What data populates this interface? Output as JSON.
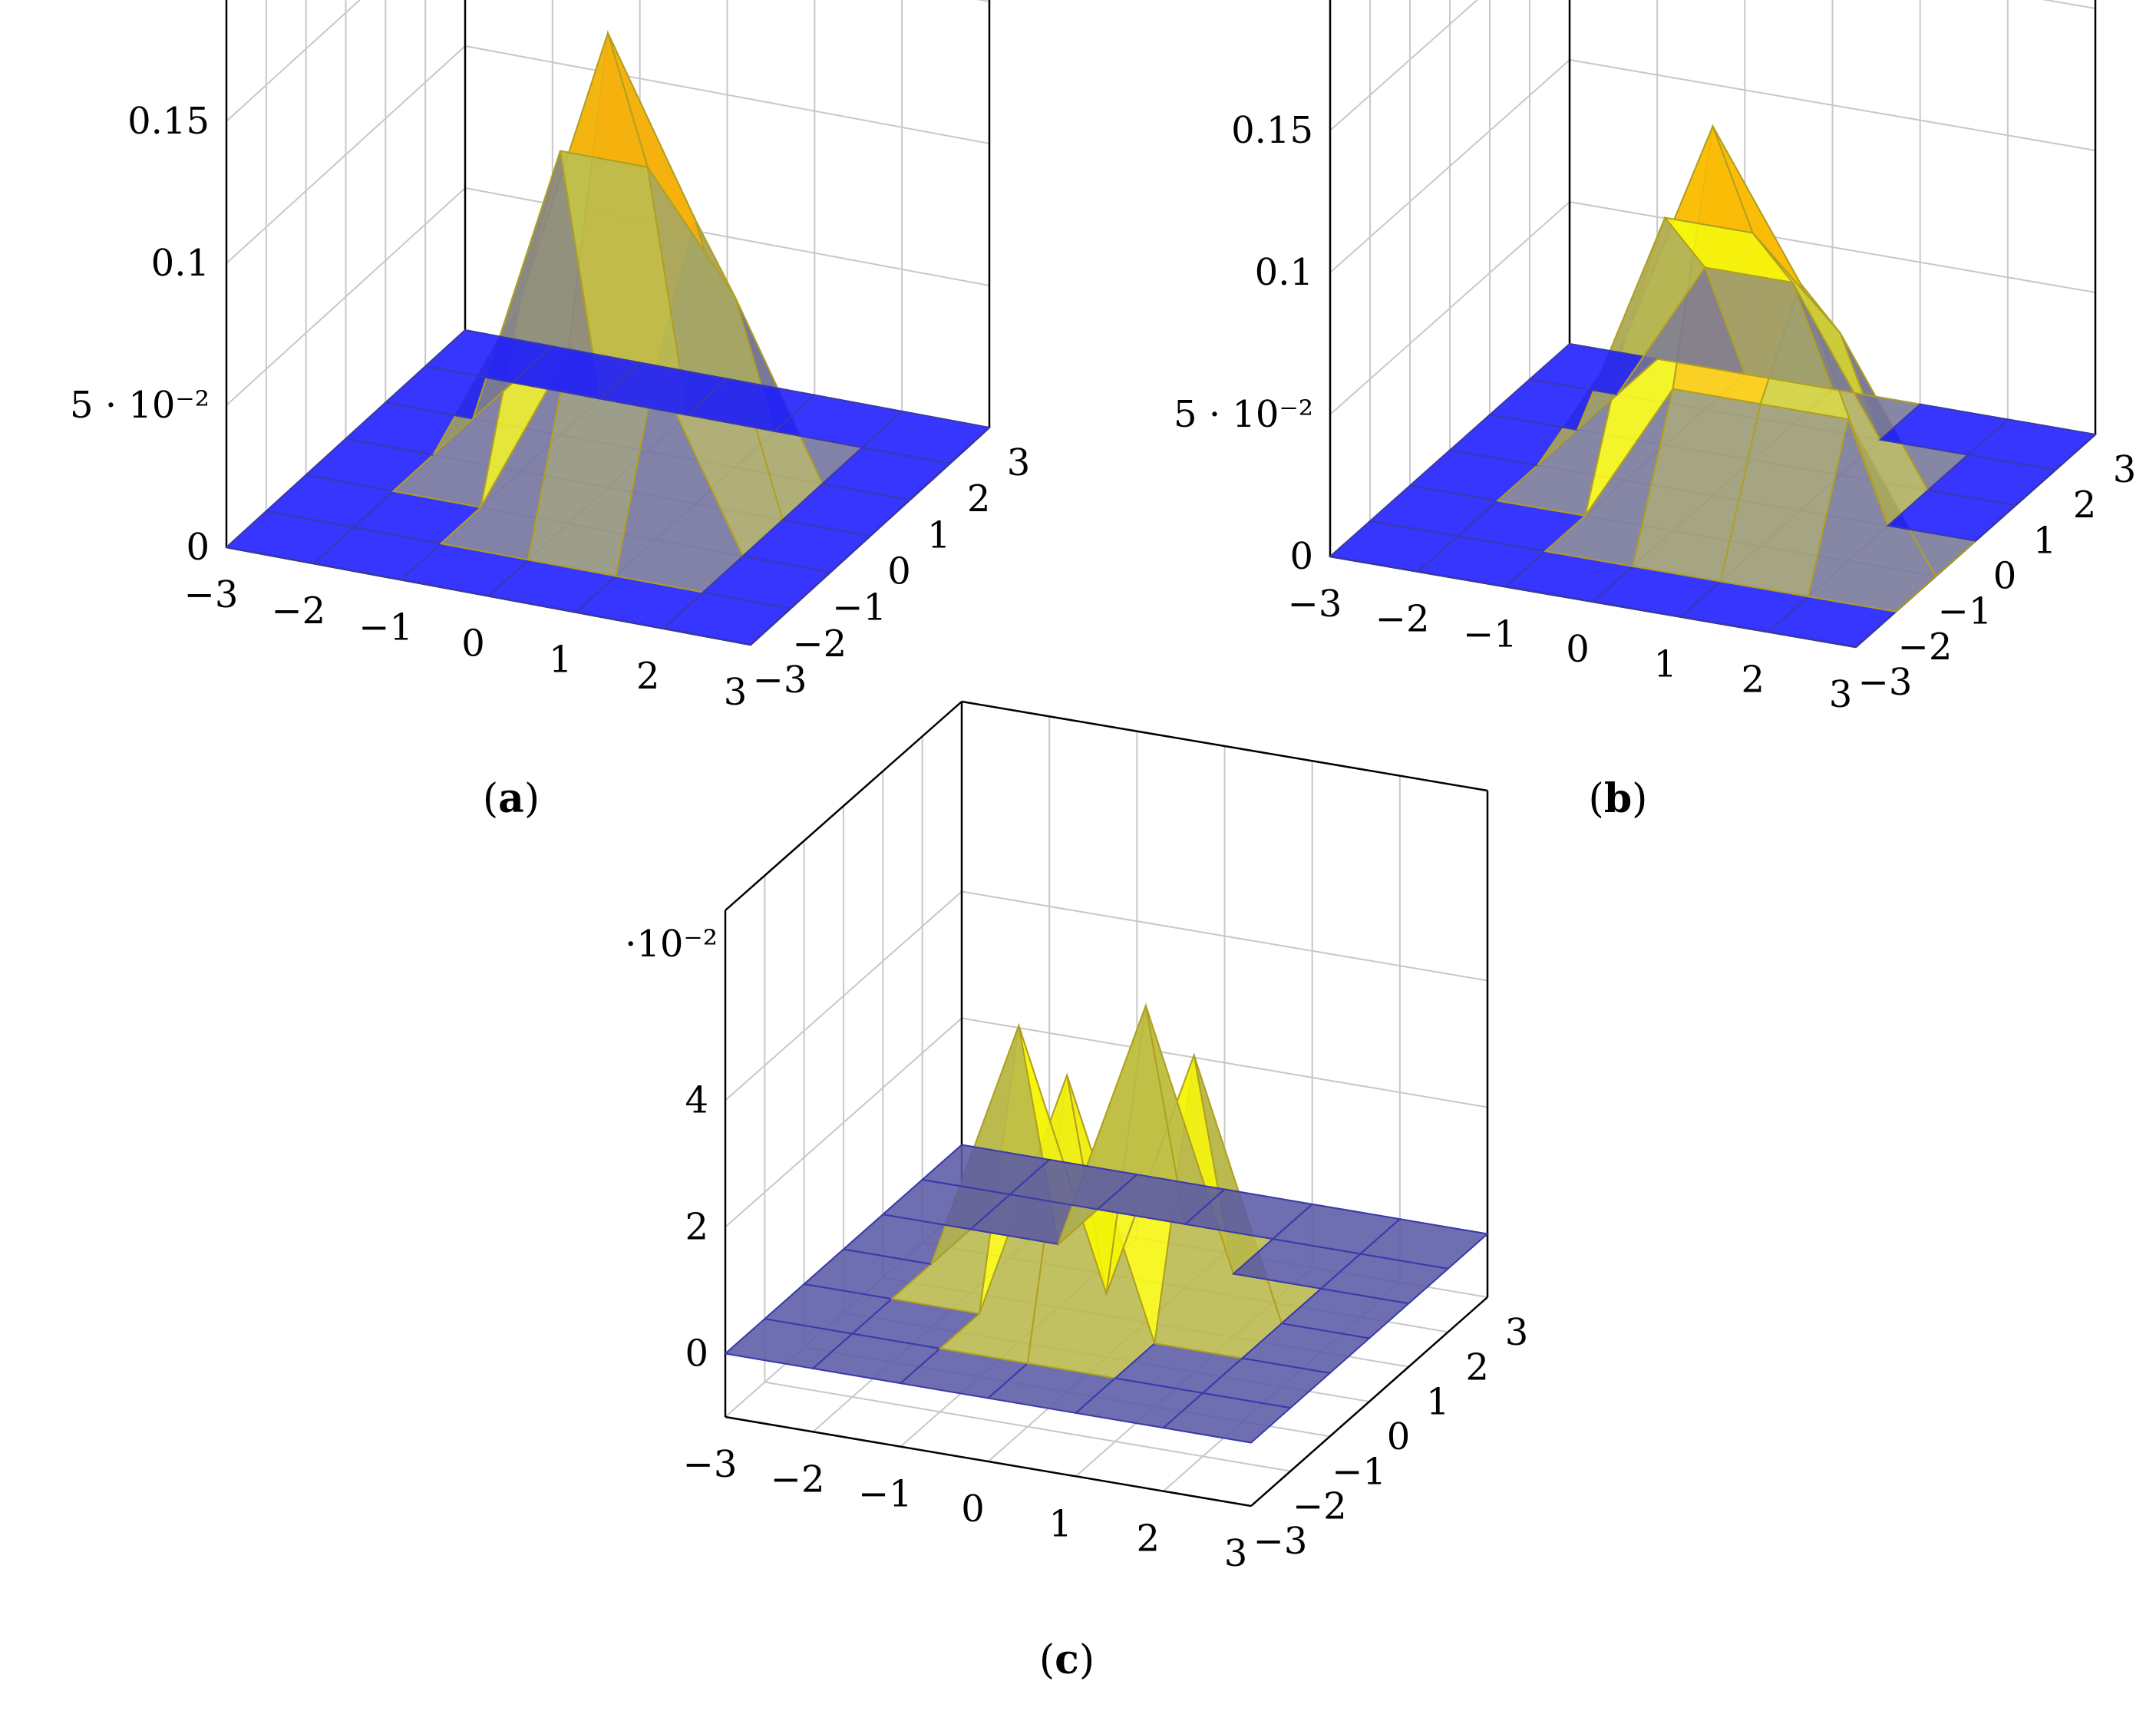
{
  "chart_data": [
    {
      "type": "surface",
      "panel_label": "a",
      "x_ticks": [
        "−3",
        "−2",
        "−1",
        "0",
        "1",
        "2",
        "3"
      ],
      "y_ticks": [
        "−3",
        "−2",
        "−1",
        "0",
        "1",
        "2",
        "3"
      ],
      "z_ticks": [
        {
          "value": 0,
          "label": "0"
        },
        {
          "value": 0.05,
          "label": "5 · 10⁻²"
        },
        {
          "value": 0.1,
          "label": "0.1"
        },
        {
          "value": 0.15,
          "label": "0.15"
        }
      ],
      "z_multiplier": "",
      "zlim": [
        0,
        0.2
      ],
      "x": [
        -3,
        -2,
        -1,
        0,
        1,
        2,
        3
      ],
      "y": [
        -3,
        -2,
        -1,
        0,
        1,
        2,
        3
      ],
      "z": [
        [
          0,
          0,
          0,
          0,
          0,
          0,
          0
        ],
        [
          0,
          0,
          0,
          0,
          0,
          0,
          0
        ],
        [
          0,
          0,
          0,
          0.06,
          0.06,
          0,
          0
        ],
        [
          0,
          0,
          0.06,
          0.16,
          0.1,
          0,
          0
        ],
        [
          0,
          0,
          0.1,
          0.1,
          0.06,
          0,
          0
        ],
        [
          0,
          0,
          0,
          0,
          0,
          0,
          0
        ],
        [
          0,
          0,
          0,
          0,
          0,
          0,
          0
        ]
      ],
      "colors": {
        "low": "#1a1aff",
        "mid": "#e6e61a",
        "high": "#ff8800"
      }
    },
    {
      "type": "surface",
      "panel_label": "b",
      "x_ticks": [
        "−3",
        "−2",
        "−1",
        "0",
        "1",
        "2",
        "3"
      ],
      "y_ticks": [
        "−3",
        "−2",
        "−1",
        "0",
        "1",
        "2",
        "3"
      ],
      "z_ticks": [
        {
          "value": 0,
          "label": "0"
        },
        {
          "value": 0.05,
          "label": "5 · 10⁻²"
        },
        {
          "value": 0.1,
          "label": "0.1"
        },
        {
          "value": 0.15,
          "label": "0.15"
        }
      ],
      "z_multiplier": "",
      "zlim": [
        0,
        0.2
      ],
      "x": [
        -3,
        -2,
        -1,
        0,
        1,
        2,
        3
      ],
      "y": [
        -3,
        -2,
        -1,
        0,
        1,
        2,
        3
      ],
      "z": [
        [
          0,
          0,
          0,
          0,
          0,
          0,
          0
        ],
        [
          0,
          0,
          0,
          0,
          0,
          0,
          0
        ],
        [
          0,
          0,
          0,
          0.05,
          0.05,
          0.05,
          0
        ],
        [
          0,
          0,
          0.05,
          0.13,
          0.08,
          0,
          0
        ],
        [
          0,
          0,
          0.08,
          0.08,
          0.05,
          0,
          0
        ],
        [
          0,
          0,
          0.05,
          0.05,
          0,
          0,
          0
        ],
        [
          0,
          0,
          0,
          0,
          0,
          0,
          0
        ]
      ],
      "colors": {
        "low": "#1a1aff",
        "mid": "#f5f50a",
        "high": "#ff8c00"
      }
    },
    {
      "type": "surface",
      "panel_label": "c",
      "x_ticks": [
        "−3",
        "−2",
        "−1",
        "0",
        "1",
        "2",
        "3"
      ],
      "y_ticks": [
        "−3",
        "−2",
        "−1",
        "0",
        "1",
        "2",
        "3"
      ],
      "z_ticks": [
        {
          "value": 0,
          "label": "0"
        },
        {
          "value": 0.02,
          "label": "2"
        },
        {
          "value": 0.04,
          "label": "4"
        }
      ],
      "z_multiplier": "·10⁻²",
      "zlim": [
        -0.01,
        0.07
      ],
      "x": [
        -3,
        -2,
        -1,
        0,
        1,
        2,
        3
      ],
      "y": [
        -3,
        -2,
        -1,
        0,
        1,
        2,
        3
      ],
      "z": [
        [
          0,
          0,
          0,
          0,
          0,
          0,
          0
        ],
        [
          0,
          0,
          0,
          0,
          0,
          0,
          0
        ],
        [
          0,
          0,
          0,
          0.04,
          0,
          0,
          0
        ],
        [
          0,
          0,
          0.04,
          0,
          0.04,
          0,
          0
        ],
        [
          0,
          0,
          0,
          0.04,
          0,
          0,
          0
        ],
        [
          0,
          0,
          0,
          0,
          0,
          0,
          0
        ],
        [
          0,
          0,
          0,
          0,
          0,
          0,
          0
        ]
      ],
      "colors": {
        "low": "#5a5aa5",
        "mid": "#f5f50a",
        "high": "#ff5500"
      }
    }
  ],
  "captions": [
    "a",
    "b",
    "c"
  ]
}
